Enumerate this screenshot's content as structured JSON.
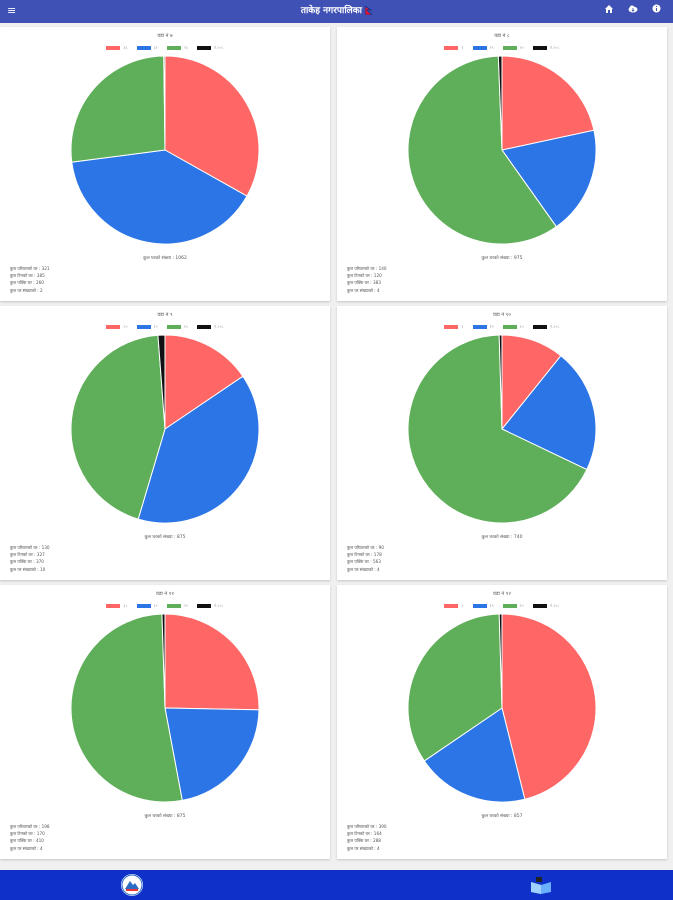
{
  "app": {
    "title": "ताकेह नगरपालिका",
    "flag_icon": "nepal-flag-icon"
  },
  "toolbar": {
    "menu_icon": "≡",
    "home_icon": "home-icon",
    "cloud_icon": "cloud-download-icon",
    "info_icon": "info-icon"
  },
  "colors": {
    "appbar": "#3f51b5",
    "bottombar": "#0f31c9",
    "red": "#ff6666",
    "blue": "#2b75e6",
    "green": "#5fae5a",
    "black": "#111111"
  },
  "chart_data": [
    {
      "type": "pie",
      "title": "वडा नं ७",
      "legend": [
        "३६",
        "३१",
        "२६",
        "नं.२०८"
      ],
      "values": [
        321,
        385,
        260,
        2
      ],
      "total_label": "कुल घरको संख्या : 1062",
      "stats": [
        "कुल परिवारको घर : 321",
        "कुल टिनको घर : 385",
        "कुल पक्कि घर : 260",
        "कुल पर संख्याको : 2"
      ]
    },
    {
      "type": "pie",
      "title": "वडा नं ८",
      "legend": [
        "१",
        "१९",
        "१०",
        "नं.२०८"
      ],
      "values": [
        140,
        120,
        383,
        4
      ],
      "total_label": "कुल घरको संख्या : 975",
      "stats": [
        "कुल परिवारको घर : 140",
        "कुल टिनको घर : 120",
        "कुल पक्कि घर : 383",
        "कुल पर संख्याको : 4"
      ]
    },
    {
      "type": "pie",
      "title": "वडा नं ९",
      "legend": [
        "२०",
        "१२",
        "१५",
        "नं.२०८"
      ],
      "values": [
        130,
        327,
        370,
        10
      ],
      "total_label": "कुल घरको संख्या : 875",
      "stats": [
        "कुल परिवारको घर : 130",
        "कुल टिनको घर : 327",
        "कुल पक्कि घर : 370",
        "कुल पर संख्याको : 10"
      ]
    },
    {
      "type": "pie",
      "title": "वडा नं १०",
      "legend": [
        "१",
        "१९",
        "१०",
        "नं.२०८"
      ],
      "values": [
        90,
        178,
        563,
        4
      ],
      "total_label": "कुल घरको संख्या : 740",
      "stats": [
        "कुल परिवारको घर : 90",
        "कुल टिनको घर : 178",
        "कुल पक्कि घर : 563",
        "कुल पर संख्याको : 4"
      ]
    },
    {
      "type": "pie",
      "title": "वडा नं ११",
      "legend": [
        "३८",
        "१२",
        "२५",
        "नं.२०८"
      ],
      "values": [
        198,
        170,
        410,
        4
      ],
      "total_label": "कुल घरको संख्या : 875",
      "stats": [
        "कुल परिवारको घर : 198",
        "कुल टिनको घर : 170",
        "कुल पक्कि घर : 410",
        "कुल पर संख्याको : 4"
      ]
    },
    {
      "type": "pie",
      "title": "वडा नं १२",
      "legend": [
        "२",
        "१९",
        "१०",
        "नं.२०८"
      ],
      "values": [
        390,
        164,
        288,
        4
      ],
      "total_label": "कुल घरको संख्या : 857",
      "stats": [
        "कुल परिवारको घर : 390",
        "कुल टिनको घर : 164",
        "कुल पक्कि घर : 288",
        "कुल पर संख्याको : 4"
      ]
    }
  ]
}
